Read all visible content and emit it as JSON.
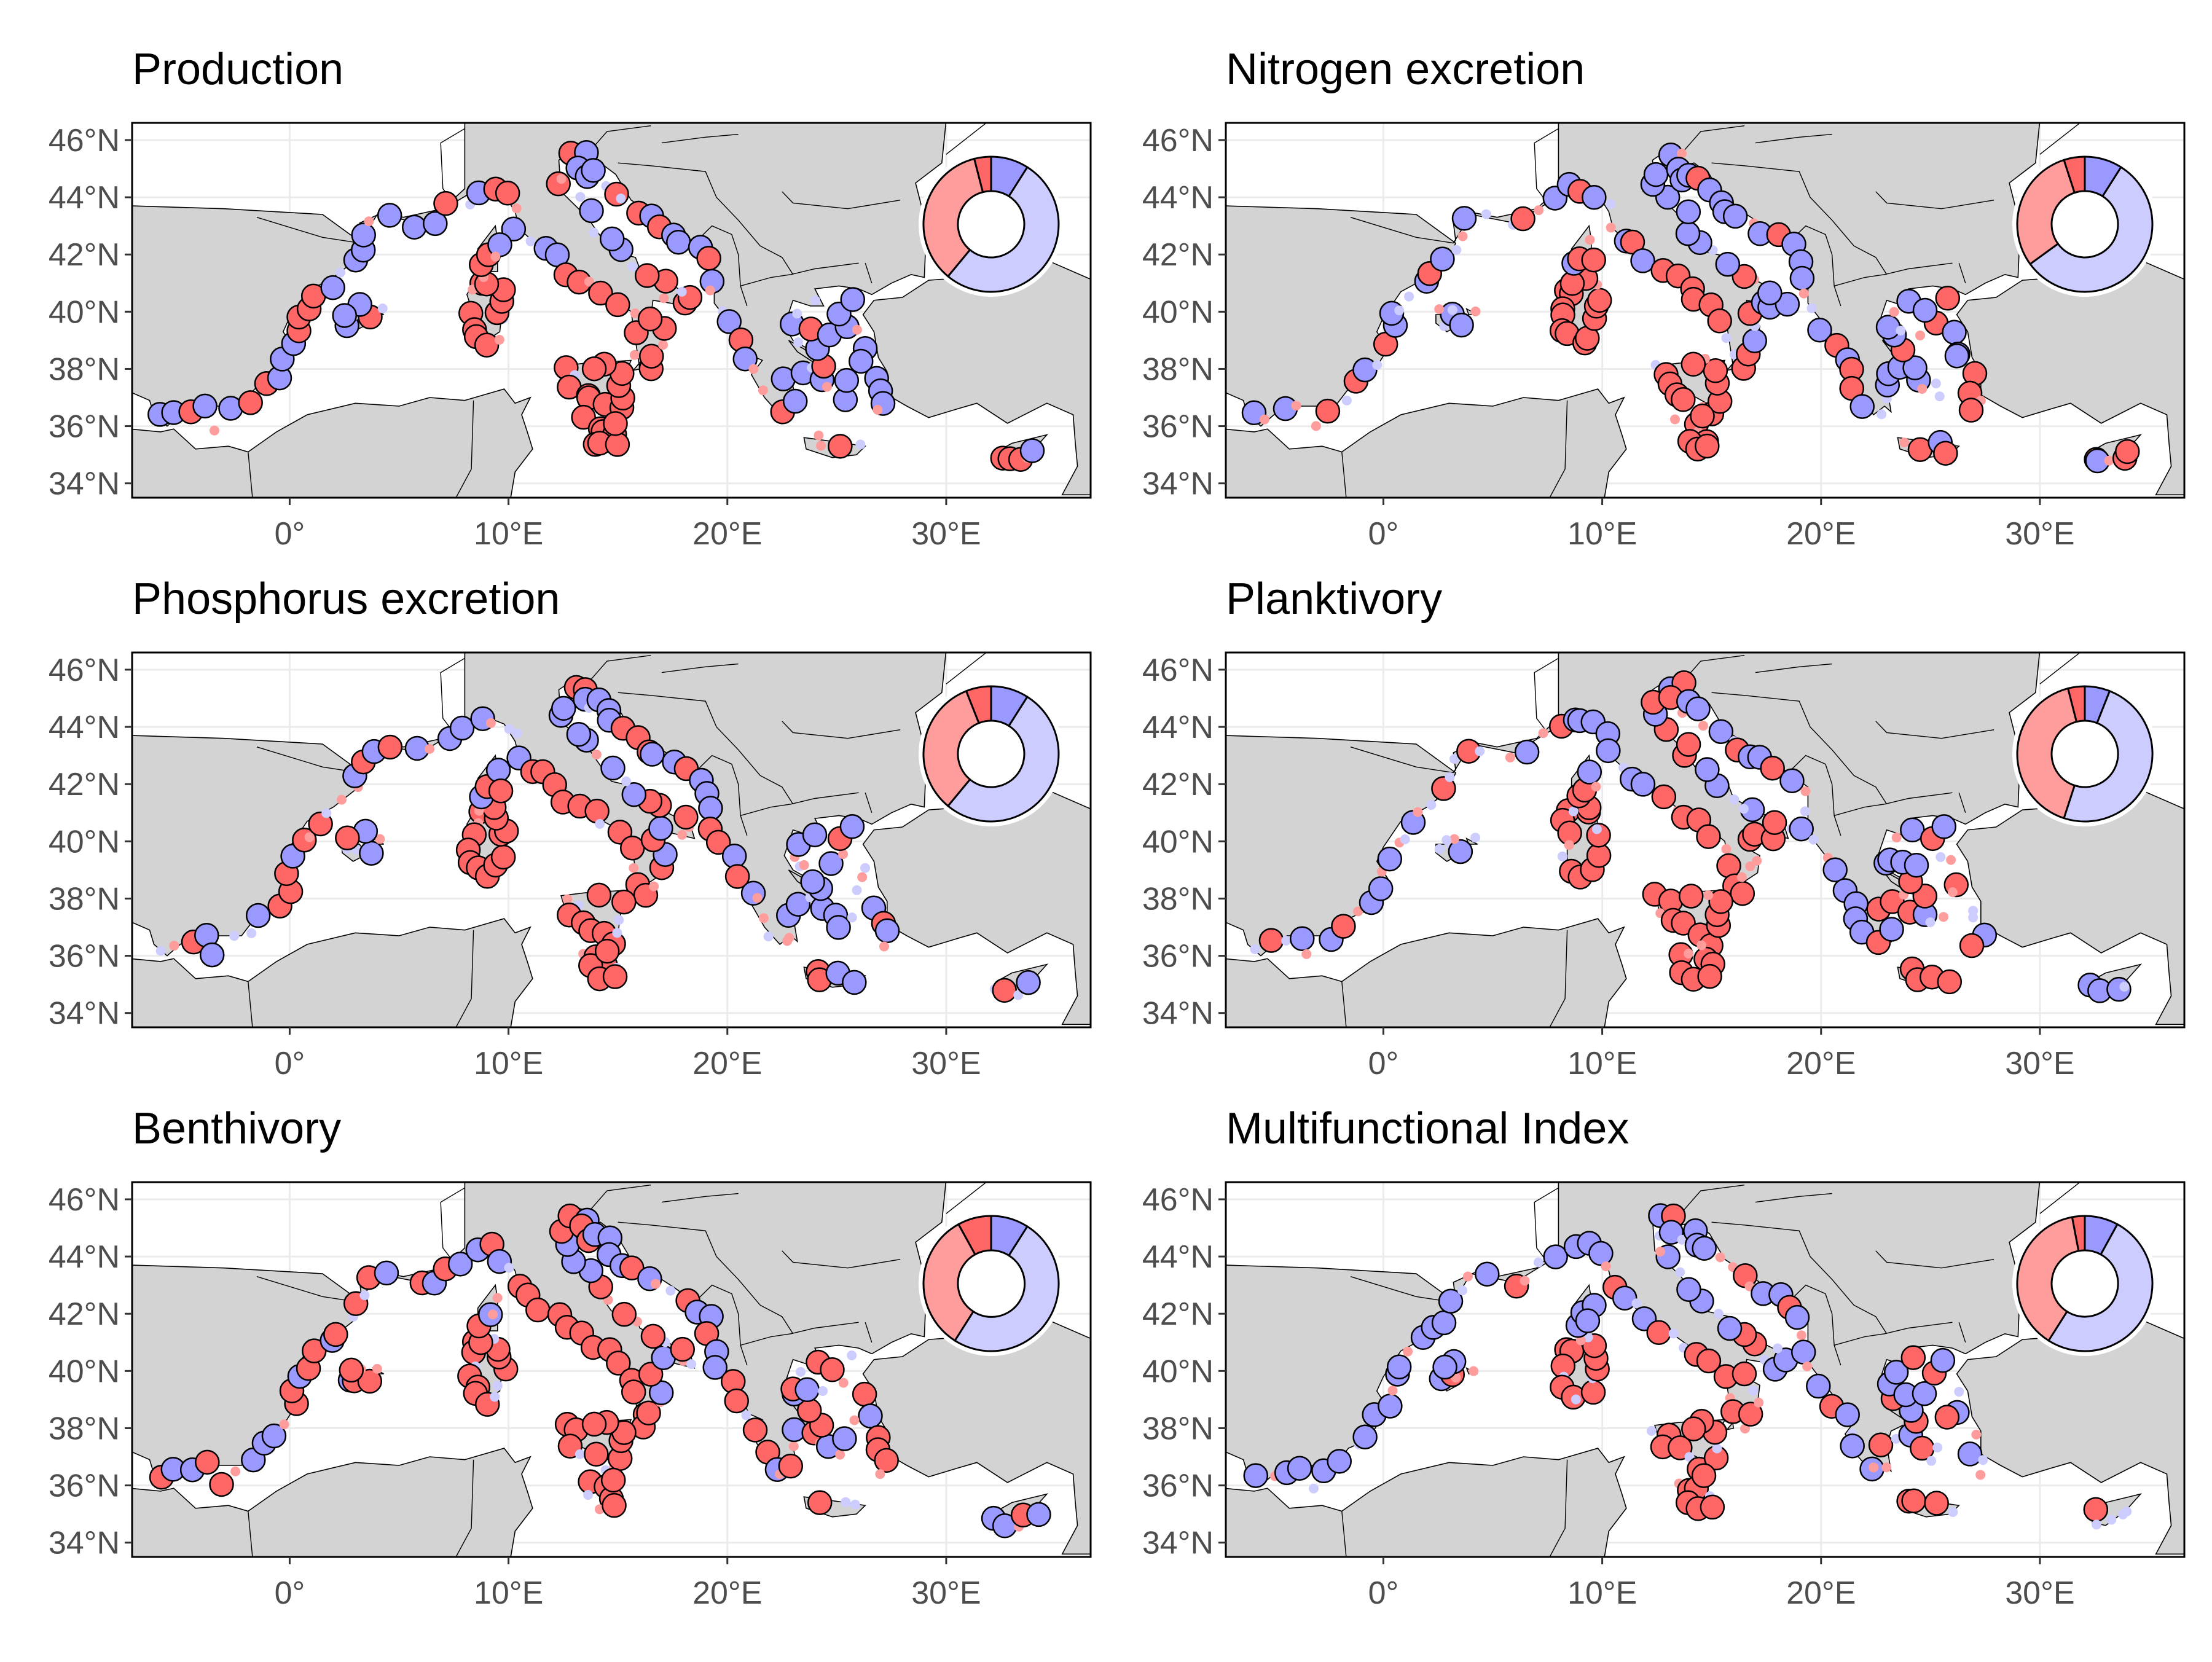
{
  "figure": {
    "axis": {
      "lon_range": [
        -7.2,
        36.6
      ],
      "lat_range": [
        33.5,
        46.6
      ],
      "x_ticks": [
        {
          "value": 0,
          "label": "0°"
        },
        {
          "value": 10,
          "label": "10°E"
        },
        {
          "value": 20,
          "label": "20°E"
        },
        {
          "value": 30,
          "label": "30°E"
        }
      ],
      "y_ticks": [
        {
          "value": 34,
          "label": "34°N"
        },
        {
          "value": 36,
          "label": "36°N"
        },
        {
          "value": 38,
          "label": "38°N"
        },
        {
          "value": 40,
          "label": "40°N"
        },
        {
          "value": 42,
          "label": "42°N"
        },
        {
          "value": 44,
          "label": "44°N"
        },
        {
          "value": 46,
          "label": "46°N"
        }
      ],
      "grid": true
    },
    "colors": {
      "strong_positive": "#ff6666",
      "weak_positive": "#ff9d9d",
      "strong_negative": "#9999ff",
      "weak_negative": "#ccccff",
      "land": "#d3d3d3",
      "sea": "#ffffff",
      "grid": "#ebebeb"
    },
    "panels": [
      {
        "title": "Production",
        "donut_fractions": [
          0.09,
          0.35,
          0.04,
          0.52
        ]
      },
      {
        "title": "Nitrogen excretion",
        "donut_fractions": [
          0.09,
          0.3,
          0.05,
          0.56
        ]
      },
      {
        "title": "Phosphorus excretion",
        "donut_fractions": [
          0.09,
          0.33,
          0.06,
          0.52
        ]
      },
      {
        "title": "Planktivory",
        "donut_fractions": [
          0.06,
          0.41,
          0.04,
          0.49
        ]
      },
      {
        "title": "Benthivory",
        "donut_fractions": [
          0.09,
          0.33,
          0.08,
          0.5
        ]
      },
      {
        "title": "Multifunctional Index",
        "donut_fractions": [
          0.08,
          0.38,
          0.03,
          0.51
        ]
      }
    ]
  }
}
